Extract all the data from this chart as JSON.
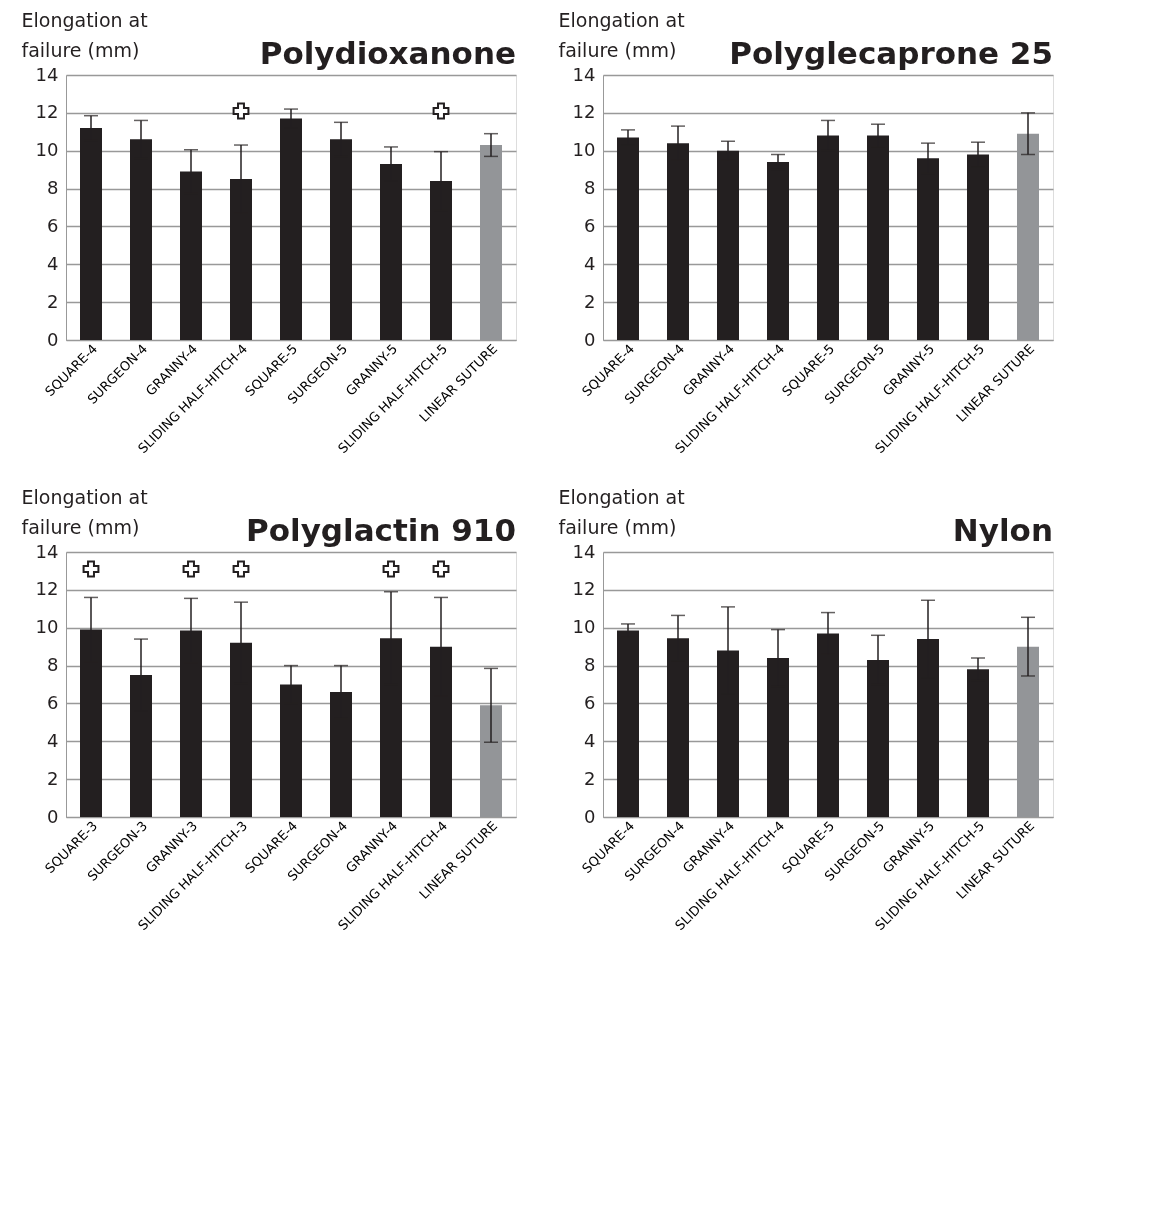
{
  "chart_data": [
    {
      "type": "bar",
      "title": "Polydioxanone",
      "ylabel": "Elongation at failure (mm)",
      "categories": [
        "SQUARE-4",
        "SURGEON-4",
        "GRANNY-4",
        "SLIDING HALF-HITCH-4",
        "SQUARE-5",
        "SURGEON-5",
        "GRANNY-5",
        "SLIDING HALF-HITCH-5",
        "LINEAR SUTURE"
      ],
      "ylim": [
        0,
        14
      ],
      "yticks": [
        0,
        2,
        4,
        6,
        8,
        10,
        12,
        14
      ],
      "grid": "y",
      "series": [
        {
          "type": "bar",
          "colors": [
            "#231f20",
            "#231f20",
            "#231f20",
            "#231f20",
            "#231f20",
            "#231f20",
            "#231f20",
            "#231f20",
            "#939598"
          ],
          "values": [
            11.2,
            10.6,
            8.9,
            8.5,
            11.7,
            10.6,
            9.3,
            8.4,
            10.3
          ],
          "errors": [
            0.65,
            1.0,
            1.15,
            1.8,
            0.5,
            0.9,
            0.9,
            1.55,
            0.6
          ]
        },
        {
          "type": "scatter",
          "marker": "cross",
          "color": "#231f20",
          "x": [
            "SLIDING HALF-HITCH-4",
            "SLIDING HALF-HITCH-5"
          ],
          "values": [
            12.1,
            12.1
          ]
        }
      ]
    },
    {
      "type": "bar",
      "title": "Polyglecaprone 25",
      "ylabel": "Elongation at failure (mm)",
      "categories": [
        "SQUARE-4",
        "SURGEON-4",
        "GRANNY-4",
        "SLIDING HALF-HITCH-4",
        "SQUARE-5",
        "SURGEON-5",
        "GRANNY-5",
        "SLIDING HALF-HITCH-5",
        "LINEAR SUTURE"
      ],
      "ylim": [
        0,
        14
      ],
      "yticks": [
        0,
        2,
        4,
        6,
        8,
        10,
        12,
        14
      ],
      "grid": "y",
      "series": [
        {
          "type": "bar",
          "colors": [
            "#231f20",
            "#231f20",
            "#231f20",
            "#231f20",
            "#231f20",
            "#231f20",
            "#231f20",
            "#231f20",
            "#939598"
          ],
          "values": [
            10.7,
            10.4,
            10.0,
            9.4,
            10.8,
            10.8,
            9.6,
            9.8,
            10.9
          ],
          "errors": [
            0.4,
            0.9,
            0.5,
            0.4,
            0.8,
            0.6,
            0.8,
            0.65,
            1.1
          ]
        }
      ]
    },
    {
      "type": "bar",
      "title": "Polyglactin 910",
      "ylabel": "Elongation at failure (mm)",
      "categories": [
        "SQUARE-3",
        "SURGEON-3",
        "GRANNY-3",
        "SLIDING HALF-HITCH-3",
        "SQUARE-4",
        "SURGEON-4",
        "GRANNY-4",
        "SLIDING HALF-HITCH-4",
        "LINEAR SUTURE"
      ],
      "ylim": [
        0,
        14
      ],
      "yticks": [
        0,
        2,
        4,
        6,
        8,
        10,
        12,
        14
      ],
      "grid": "y",
      "series": [
        {
          "type": "bar",
          "colors": [
            "#231f20",
            "#231f20",
            "#231f20",
            "#231f20",
            "#231f20",
            "#231f20",
            "#231f20",
            "#231f20",
            "#939598"
          ],
          "values": [
            9.9,
            7.5,
            9.85,
            9.2,
            7.0,
            6.6,
            9.45,
            9.0,
            5.9
          ],
          "errors": [
            1.7,
            1.9,
            1.7,
            2.15,
            1.0,
            1.4,
            2.45,
            2.6,
            1.95
          ]
        },
        {
          "type": "scatter",
          "marker": "cross",
          "color": "#231f20",
          "x": [
            "SQUARE-3",
            "GRANNY-3",
            "SLIDING HALF-HITCH-3",
            "GRANNY-4",
            "SLIDING HALF-HITCH-4"
          ],
          "values": [
            13.1,
            13.1,
            13.1,
            13.1,
            13.1
          ]
        }
      ]
    },
    {
      "type": "bar",
      "title": "Nylon",
      "ylabel": "Elongation at failure (mm)",
      "categories": [
        "SQUARE-4",
        "SURGEON-4",
        "GRANNY-4",
        "SLIDING HALF-HITCH-4",
        "SQUARE-5",
        "SURGEON-5",
        "GRANNY-5",
        "SLIDING HALF-HITCH-5",
        "LINEAR SUTURE"
      ],
      "ylim": [
        0,
        14
      ],
      "yticks": [
        0,
        2,
        4,
        6,
        8,
        10,
        12,
        14
      ],
      "grid": "y",
      "series": [
        {
          "type": "bar",
          "colors": [
            "#231f20",
            "#231f20",
            "#231f20",
            "#231f20",
            "#231f20",
            "#231f20",
            "#231f20",
            "#231f20",
            "#939598"
          ],
          "values": [
            9.85,
            9.45,
            8.8,
            8.4,
            9.7,
            8.3,
            9.4,
            7.8,
            9.0
          ],
          "errors": [
            0.35,
            1.2,
            2.3,
            1.5,
            1.1,
            1.3,
            2.05,
            0.6,
            1.55
          ]
        }
      ]
    }
  ]
}
